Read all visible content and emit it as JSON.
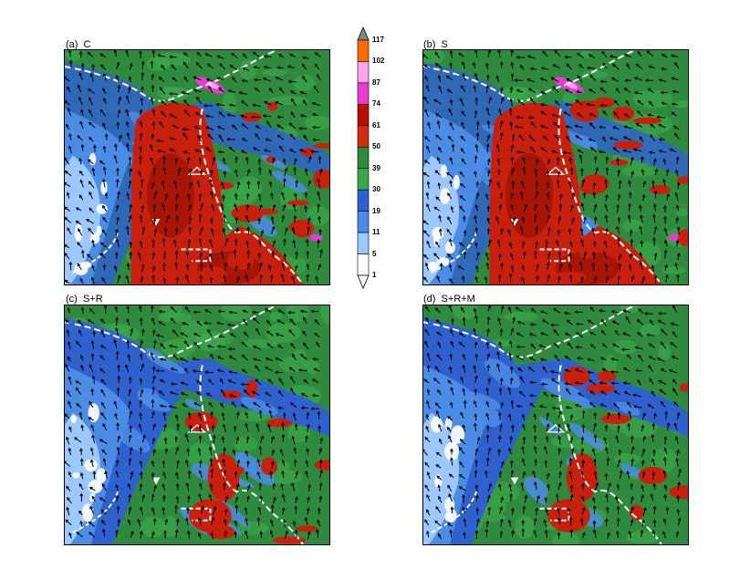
{
  "panels": [
    {
      "id": "a",
      "label": "(a)  C",
      "red_amount": 1.0
    },
    {
      "id": "b",
      "label": "(b)  S",
      "red_amount": 0.85
    },
    {
      "id": "c",
      "label": "(c)  S+R",
      "red_amount": 0.35
    },
    {
      "id": "d",
      "label": "(d)  S+R+M",
      "red_amount": 0.3
    }
  ],
  "colorbar": {
    "levels": [
      "117",
      "102",
      "87",
      "74",
      "61",
      "50",
      "39",
      "30",
      "19",
      "11",
      "5",
      "1"
    ],
    "colors": [
      "#ff6a00",
      "#ffa5f0",
      "#e63cd2",
      "#b80f00",
      "#d12b10",
      "#2e8b3e",
      "#3aa848",
      "#2f5fd6",
      "#4a8ce6",
      "#9cc8ff",
      "#ffffff"
    ],
    "cap_top_color": "#888888",
    "cap_bottom_color": "#ffffff"
  },
  "colors": {
    "green": "#2e8b3e",
    "green_light": "#3aa848",
    "blue_dark": "#2f5fd6",
    "blue_mid": "#4a8ce6",
    "blue_light": "#9cc8ff",
    "white": "#ffffff",
    "red": "#c8200c",
    "red_dark": "#a81505",
    "magenta": "#e63cd2",
    "pink": "#ffa5f0",
    "boundary": "#ffffff",
    "arrow": "#000000"
  }
}
